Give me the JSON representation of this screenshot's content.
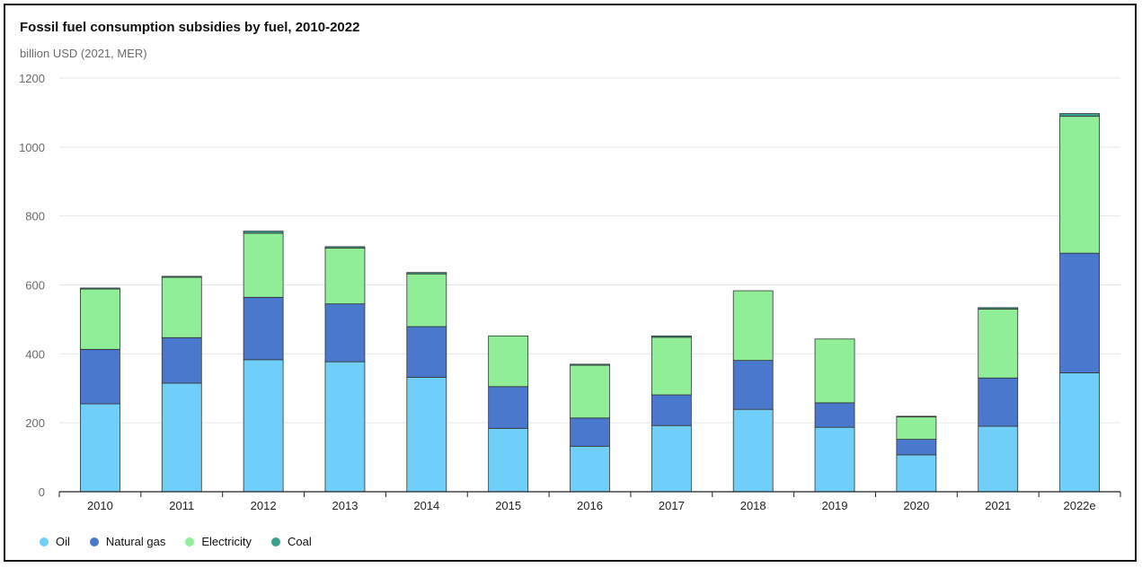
{
  "chart_data": {
    "type": "bar",
    "stacked": true,
    "title": "Fossil fuel consumption subsidies by fuel, 2010-2022",
    "subtitle": "billion USD (2021, MER)",
    "categories": [
      "2010",
      "2011",
      "2012",
      "2013",
      "2014",
      "2015",
      "2016",
      "2017",
      "2018",
      "2019",
      "2020",
      "2021",
      "2022e"
    ],
    "series": [
      {
        "name": "Oil",
        "color": "#6fcff8",
        "values": [
          255,
          315,
          383,
          377,
          332,
          184,
          132,
          192,
          239,
          187,
          107,
          190,
          345
        ]
      },
      {
        "name": "Natural gas",
        "color": "#4a78cc",
        "values": [
          158,
          132,
          181,
          168,
          147,
          121,
          82,
          89,
          142,
          71,
          45,
          140,
          347
        ]
      },
      {
        "name": "Electricity",
        "color": "#8fee97",
        "values": [
          175,
          175,
          186,
          162,
          153,
          147,
          153,
          167,
          202,
          185,
          65,
          200,
          397
        ]
      },
      {
        "name": "Coal",
        "color": "#3a9e8c",
        "values": [
          3,
          3,
          6,
          4,
          4,
          0,
          3,
          4,
          0,
          0,
          2,
          4,
          8
        ]
      }
    ],
    "ylim": [
      0,
      1200
    ],
    "yticks": [
      0,
      200,
      400,
      600,
      800,
      1000,
      1200
    ],
    "grid": true,
    "legend": "bottom-left"
  }
}
